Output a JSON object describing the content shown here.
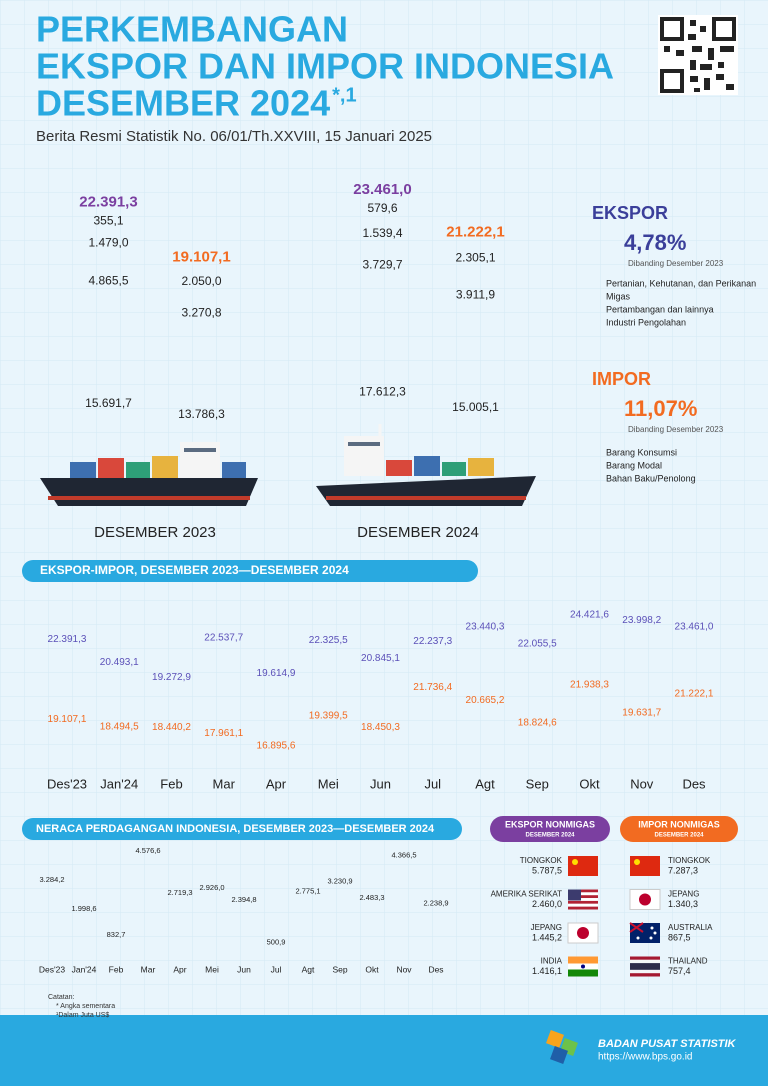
{
  "header": {
    "title_lines": [
      "PERKEMBANGAN",
      "EKSPOR DAN IMPOR INDONESIA",
      "DESEMBER 2024"
    ],
    "title_mark": "*,1",
    "subtitle": "Berita Resmi Statistik No. 06/01/Th.XXVIII, 15 Januari 2025"
  },
  "chart_data": [
    {
      "type": "stacked-bar",
      "categories": [
        "DESEMBER 2023",
        "DESEMBER 2024"
      ],
      "groups": [
        {
          "name": "EKSPOR",
          "color": "#3b3f9a",
          "change": "4,78%",
          "note": "Dibanding Desember 2023",
          "total": {
            "values": [
              22391.3,
              23461.0
            ],
            "value_labels": [
              "22.391,3",
              "23.461,0"
            ],
            "color": "#7b3fa0"
          },
          "series": [
            {
              "name": "Industri Pengolahan",
              "color": "#dcc6ea",
              "values": [
                15691.7,
                17612.3
              ],
              "value_labels": [
                "15.691,7",
                "17.612,3"
              ]
            },
            {
              "name": "Pertambangan dan lainnya",
              "color": "#a688cf",
              "values": [
                4865.5,
                3729.7
              ],
              "value_labels": [
                "4.865,5",
                "3.729,7"
              ]
            },
            {
              "name": "Migas",
              "color": "#7a4fb2",
              "values": [
                1479.0,
                1539.4
              ],
              "value_labels": [
                "1.479,0",
                "1.539,4"
              ]
            },
            {
              "name": "Pertanian, Kehutanan, dan Perikanan",
              "color": "#2a1838",
              "values": [
                355.1,
                579.6
              ],
              "value_labels": [
                "355,1",
                "579,6"
              ]
            }
          ]
        },
        {
          "name": "IMPOR",
          "color": "#f26b21",
          "change": "11,07%",
          "note": "Dibanding Desember 2023",
          "total": {
            "values": [
              19107.1,
              21222.1
            ],
            "value_labels": [
              "19.107,1",
              "21.222,1"
            ],
            "color": "#f26b21"
          },
          "series": [
            {
              "name": "Bahan Baku/Penolong",
              "color": "#fdcb95",
              "values": [
                13786.3,
                15005.1
              ],
              "value_labels": [
                "13.786,3",
                "15.005,1"
              ]
            },
            {
              "name": "Barang Modal",
              "color": "#f26b21",
              "values": [
                3270.8,
                3911.9
              ],
              "value_labels": [
                "3.270,8",
                "3.911,9"
              ]
            },
            {
              "name": "Barang Konsumsi",
              "color": "#9b3a16",
              "values": [
                2050.0,
                2305.1
              ],
              "value_labels": [
                "2.050,0",
                "2.305,1"
              ]
            }
          ]
        }
      ]
    },
    {
      "type": "line",
      "title": "EKSPOR-IMPOR, DESEMBER 2023—DESEMBER 2024",
      "categories": [
        "Des'23",
        "Jan'24",
        "Feb",
        "Mar",
        "Apr",
        "Mei",
        "Jun",
        "Jul",
        "Agt",
        "Sep",
        "Okt",
        "Nov",
        "Des"
      ],
      "series": [
        {
          "color": "#5b50b8",
          "values": [
            22391.3,
            20493.1,
            19272.9,
            22537.7,
            19614.9,
            22325.5,
            20845.1,
            22237.3,
            23440.3,
            22055.5,
            24421.6,
            23998.2,
            23461.0
          ],
          "value_labels": [
            "22.391,3",
            "20.493,1",
            "19.272,9",
            "22.537,7",
            "19.614,9",
            "22.325,5",
            "20.845,1",
            "22.237,3",
            "23.440,3",
            "22.055,5",
            "24.421,6",
            "23.998,2",
            "23.461,0"
          ]
        },
        {
          "color": "#f26b21",
          "values": [
            19107.1,
            18494.5,
            18440.2,
            17961.1,
            16895.6,
            19399.5,
            18450.3,
            21736.4,
            20665.2,
            18824.6,
            21938.3,
            19631.7,
            21222.1
          ],
          "value_labels": [
            "19.107,1",
            "18.494,5",
            "18.440,2",
            "17.961,1",
            "16.895,6",
            "19.399,5",
            "18.450,3",
            "21.736,4",
            "20.665,2",
            "18.824,6",
            "21.938,3",
            "19.631,7",
            "21.222,1"
          ]
        }
      ]
    },
    {
      "type": "bar",
      "title": "NERACA PERDAGANGAN INDONESIA, DESEMBER 2023—DESEMBER 2024",
      "color": "#1f5fa8",
      "categories": [
        "Des'23",
        "Jan'24",
        "Feb",
        "Mar",
        "Apr",
        "Mei",
        "Jun",
        "Jul",
        "Agt",
        "Sep",
        "Okt",
        "Nov",
        "Des"
      ],
      "values": [
        3284.2,
        1998.6,
        832.7,
        4576.6,
        2719.3,
        2926.0,
        2394.8,
        500.9,
        2775.1,
        3230.9,
        2483.3,
        4366.5,
        2238.9
      ],
      "value_labels": [
        "3.284,2",
        "1.998,6",
        "832,7",
        "4.576,6",
        "2.719,3",
        "2.926,0",
        "2.394,8",
        "500,9",
        "2.775,1",
        "3.230,9",
        "2.483,3",
        "4.366,5",
        "2.238,9"
      ]
    }
  ],
  "partners": {
    "export": {
      "title": "EKSPOR NONMIGAS",
      "subtitle": "DESEMBER 2024",
      "rows": [
        {
          "country": "TIONGKOK",
          "value": "5.787,5"
        },
        {
          "country": "AMERIKA SERIKAT",
          "value": "2.460,0"
        },
        {
          "country": "JEPANG",
          "value": "1.445,2"
        },
        {
          "country": "INDIA",
          "value": "1.416,1"
        }
      ]
    },
    "import": {
      "title": "IMPOR NONMIGAS",
      "subtitle": "DESEMBER 2024",
      "rows": [
        {
          "country": "TIONGKOK",
          "value": "7.287,3"
        },
        {
          "country": "JEPANG",
          "value": "1.340,3"
        },
        {
          "country": "AUSTRALIA",
          "value": "867,5"
        },
        {
          "country": "THAILAND",
          "value": "757,4"
        }
      ]
    }
  },
  "notes": {
    "heading": "Catatan:",
    "lines": [
      "* Angka sementara",
      "¹Dalam Juta US$"
    ]
  },
  "footer": {
    "org": "BADAN PUSAT STATISTIK",
    "url": "https://www.bps.go.id"
  }
}
